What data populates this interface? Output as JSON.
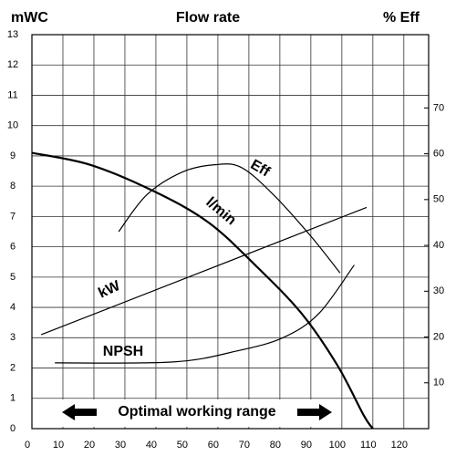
{
  "chart_data": {
    "type": "line",
    "title": "Flow rate",
    "y_label": "mWC",
    "y2_label": "% Eff",
    "annotation": "Optimal working range",
    "xlim": [
      0,
      128
    ],
    "xticks": [
      0,
      10,
      20,
      30,
      40,
      50,
      60,
      70,
      80,
      90,
      100,
      110,
      120
    ],
    "ylim": [
      0,
      13
    ],
    "yticks": [
      0,
      1,
      2,
      3,
      4,
      5,
      6,
      7,
      8,
      9,
      10,
      11,
      12,
      13
    ],
    "y2lim": [
      0,
      86
    ],
    "y2ticks": [
      10,
      20,
      30,
      40,
      50,
      60,
      70
    ],
    "grid": true,
    "series": [
      {
        "name": "l/min",
        "color": "#000000",
        "x": [
          0,
          19,
          40,
          57,
          72,
          87,
          98.5,
          107,
          110
        ],
        "values": [
          9.1,
          8.7,
          7.8,
          6.8,
          5.4,
          3.8,
          2.1,
          0.45,
          0
        ]
      },
      {
        "name": "Eff",
        "color": "#000000",
        "axis": "y2",
        "x": [
          28,
          37,
          48.5,
          59,
          67.6,
          78,
          90,
          99.4
        ],
        "values": [
          43,
          51,
          56,
          57.6,
          57,
          51,
          42,
          34
        ]
      },
      {
        "name": "kW",
        "color": "#000000",
        "x": [
          3,
          108
        ],
        "values": [
          3.1,
          7.3
        ]
      },
      {
        "name": "NPSH",
        "color": "#000000",
        "x": [
          7.4,
          45.6,
          66,
          81,
          92.6,
          104
        ],
        "values": [
          2.17,
          2.2,
          2.56,
          3.0,
          3.8,
          5.4
        ]
      }
    ]
  }
}
